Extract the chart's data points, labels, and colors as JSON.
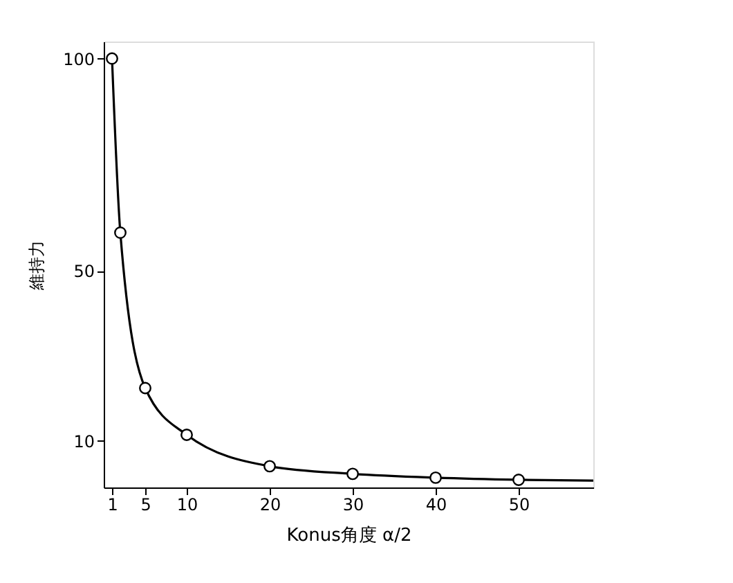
{
  "chart_data": {
    "type": "line",
    "xlabel": "Konus角度 α/2",
    "ylabel": "維持力",
    "series": [
      {
        "marker": "none",
        "color": "#000000",
        "x": [
          1,
          2,
          5,
          10,
          20,
          30,
          40,
          50,
          59
        ],
        "values": [
          100,
          59,
          22.4,
          11.4,
          4,
          2.2,
          1.3,
          0.8,
          0.6
        ]
      },
      {
        "type": "scatter",
        "marker": "circle",
        "color": "#000000",
        "x": [
          1,
          2,
          5,
          10,
          20,
          30,
          40,
          50
        ],
        "values": [
          100,
          59,
          22.4,
          11.4,
          4,
          2.2,
          1.3,
          0.8
        ]
      }
    ],
    "xlim": [
      0,
      59
    ],
    "xticks": [
      1,
      5,
      10,
      20,
      30,
      40,
      50
    ],
    "ylim": [
      -1,
      104
    ],
    "yticks": [
      10,
      50,
      100
    ],
    "grid": false
  }
}
